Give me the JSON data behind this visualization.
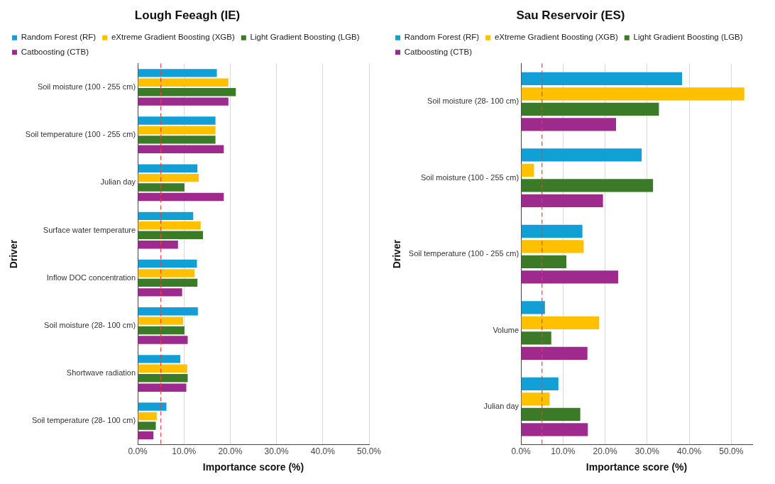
{
  "chart_data": [
    {
      "type": "bar",
      "orientation": "horizontal",
      "title": "Lough Feeagh (IE)",
      "xlabel": "Importance score (%)",
      "ylabel": "Driver",
      "categories": [
        "Soil moisture (100 - 255 cm)",
        "Soil temperature (100 - 255 cm)",
        "Julian day",
        "Surface water temperature",
        "Inflow DOC concentration",
        "Soil moisture (28- 100 cm)",
        "Shortwave radiation",
        "Soil temperature (28- 100 cm)"
      ],
      "series": [
        {
          "name": "Random Forest (RF)",
          "color": "#119fd6",
          "values": [
            17.1,
            16.8,
            12.9,
            12.0,
            12.8,
            13.0,
            9.2,
            6.2
          ]
        },
        {
          "name": "eXtreme Gradient Boosting (XGB)",
          "color": "#ffc000",
          "values": [
            19.6,
            16.8,
            13.2,
            13.6,
            12.3,
            9.8,
            10.7,
            4.1
          ]
        },
        {
          "name": "Light Gradient Boosting (LGB)",
          "color": "#3b7a26",
          "values": [
            21.2,
            16.8,
            10.1,
            14.1,
            12.9,
            10.1,
            10.8,
            3.9
          ]
        },
        {
          "name": "Catboosting (CTB)",
          "color": "#9e2a8e",
          "values": [
            19.6,
            18.6,
            18.6,
            8.7,
            9.6,
            10.8,
            10.5,
            3.4
          ]
        }
      ],
      "xlim": [
        0,
        50
      ],
      "xticks": [
        {
          "value": 0,
          "label": "0.0%"
        },
        {
          "value": 10,
          "label": "10.0%"
        },
        {
          "value": 20,
          "label": "20.0%"
        },
        {
          "value": 30,
          "label": "30.0%"
        },
        {
          "value": 40,
          "label": "40.0%"
        },
        {
          "value": 50,
          "label": "50.0%"
        }
      ],
      "grid": "x",
      "legend": "top left",
      "ref_lines": [
        {
          "axis": "x",
          "value": 5,
          "color": "#e8413c",
          "line_style": "dashed"
        }
      ]
    },
    {
      "type": "bar",
      "orientation": "horizontal",
      "title": "Sau Reservoir (ES)",
      "xlabel": "Importance score (%)",
      "ylabel": "Driver",
      "categories": [
        "Soil moisture (28- 100 cm)",
        "Soil moisture (100 - 255 cm)",
        "Soil temperature (100 - 255 cm)",
        "Volume",
        "Julian day"
      ],
      "series": [
        {
          "name": "Random Forest (RF)",
          "color": "#119fd6",
          "values": [
            38.3,
            28.7,
            14.6,
            5.7,
            8.9
          ]
        },
        {
          "name": "eXtreme Gradient Boosting (XGB)",
          "color": "#ffc000",
          "values": [
            53.1,
            3.1,
            14.9,
            18.6,
            6.8
          ]
        },
        {
          "name": "Light Gradient Boosting (LGB)",
          "color": "#3b7a26",
          "values": [
            32.8,
            31.4,
            10.8,
            7.2,
            14.1
          ]
        },
        {
          "name": "Catboosting (CTB)",
          "color": "#9e2a8e",
          "values": [
            22.6,
            19.5,
            23.1,
            15.8,
            15.9
          ]
        }
      ],
      "xlim": [
        0,
        55
      ],
      "xticks": [
        {
          "value": 0,
          "label": "0.0%"
        },
        {
          "value": 10,
          "label": "10.0%"
        },
        {
          "value": 20,
          "label": "20.0%"
        },
        {
          "value": 30,
          "label": "30.0%"
        },
        {
          "value": 40,
          "label": "40.0%"
        },
        {
          "value": 50,
          "label": "50.0%"
        }
      ],
      "grid": "x",
      "legend": "top left",
      "ref_lines": [
        {
          "axis": "x",
          "value": 5,
          "color": "#e8413c",
          "line_style": "dashed"
        }
      ]
    }
  ]
}
